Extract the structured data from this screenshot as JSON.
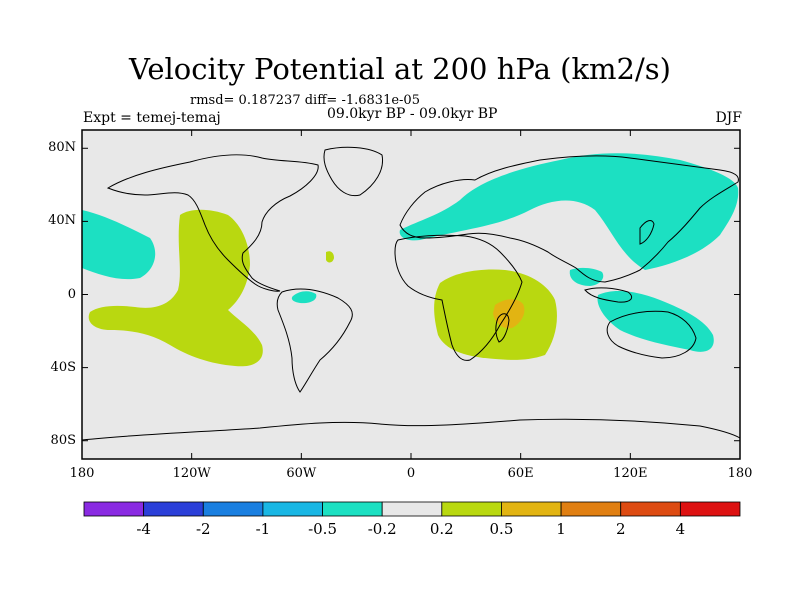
{
  "title": "Velocity Potential at 200 hPa (km2/s)",
  "stats": "rmsd= 0.187237 diff= -1.6831e-05",
  "period": "09.0kyr BP - 09.0kyr BP",
  "expt": "Expt = temej-temaj",
  "season": "DJF",
  "y_ticks": [
    {
      "label": "80N",
      "lat": 80
    },
    {
      "label": "40N",
      "lat": 40
    },
    {
      "label": "0",
      "lat": 0
    },
    {
      "label": "40S",
      "lat": -40
    },
    {
      "label": "80S",
      "lat": -80
    }
  ],
  "x_ticks": [
    {
      "label": "180",
      "lon": -180
    },
    {
      "label": "120W",
      "lon": -120
    },
    {
      "label": "60W",
      "lon": -60
    },
    {
      "label": "0",
      "lon": 0
    },
    {
      "label": "60E",
      "lon": 60
    },
    {
      "label": "120E",
      "lon": 120
    },
    {
      "label": "180",
      "lon": 180
    }
  ],
  "colorbar": {
    "colors": [
      "#8a2be2",
      "#2b3fd8",
      "#1a7fe0",
      "#19b7e4",
      "#1ce0c2",
      "#e8e8e8",
      "#b9d810",
      "#e2b412",
      "#e07f12",
      "#dd4b12",
      "#dd1111"
    ],
    "labels": [
      "-4",
      "-2",
      "-1",
      "-0.5",
      "-0.2",
      "0.2",
      "0.5",
      "1",
      "2",
      "4"
    ]
  },
  "colors": {
    "background": "#e8e8e8",
    "negative_shading": "#1ce0c2",
    "positive_shading": "#b9d810",
    "strong_positive_shading": "#e2b412"
  }
}
